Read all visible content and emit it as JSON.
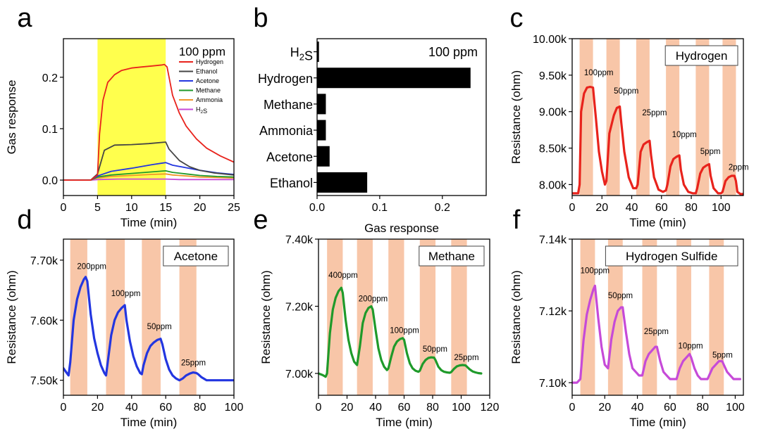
{
  "colors": {
    "hydrogen": "#e8231c",
    "ethanol": "#454545",
    "acetone": "#2336e0",
    "methane": "#1f9a2a",
    "ammonia": "#f0962a",
    "h2s": "#c64ad8",
    "exposure_highlight": "#ffff4d",
    "exposure_band": "#f8c6a8",
    "bar": "#000000"
  },
  "chart_data": [
    {
      "panel_label": "a",
      "type": "line",
      "annotation": "100 ppm",
      "xlabel": "Time (min)",
      "ylabel": "Gas response",
      "xlim": [
        0,
        25
      ],
      "ylim": [
        -0.03,
        0.275
      ],
      "xticks": [
        0,
        5,
        10,
        15,
        20,
        25
      ],
      "yticks": [
        0.0,
        0.1,
        0.2
      ],
      "ytick_labels": [
        "0.0",
        "0.1",
        "0.2"
      ],
      "highlight": [
        5,
        15
      ],
      "legend_position": "top-right",
      "legend": [
        "Hydrogen",
        "Ethanol",
        "Acetone",
        "Methane",
        "Ammonia",
        "H2S"
      ],
      "series": [
        {
          "name": "Hydrogen",
          "color_key": "hydrogen",
          "x": [
            0,
            4,
            5,
            5.3,
            5.8,
            6.5,
            7.5,
            8.5,
            10,
            11.5,
            13,
            14.5,
            14.8,
            15.2,
            16,
            17,
            18,
            19.5,
            21,
            23,
            25
          ],
          "y": [
            0,
            0,
            0.01,
            0.09,
            0.155,
            0.19,
            0.205,
            0.213,
            0.218,
            0.22,
            0.222,
            0.224,
            0.225,
            0.22,
            0.165,
            0.13,
            0.105,
            0.08,
            0.062,
            0.047,
            0.035
          ]
        },
        {
          "name": "Ethanol",
          "color_key": "ethanol",
          "x": [
            0,
            4,
            5,
            6,
            7.5,
            10,
            12.5,
            15,
            15.5,
            17,
            18.5,
            20,
            22,
            25
          ],
          "y": [
            0,
            0,
            0.012,
            0.058,
            0.068,
            0.069,
            0.071,
            0.074,
            0.06,
            0.038,
            0.026,
            0.019,
            0.014,
            0.01
          ]
        },
        {
          "name": "Acetone",
          "color_key": "acetone",
          "x": [
            0,
            4,
            5,
            7,
            10,
            13,
            15,
            16,
            18,
            20,
            22.5,
            25
          ],
          "y": [
            0,
            0,
            0.008,
            0.017,
            0.023,
            0.03,
            0.034,
            0.029,
            0.024,
            0.019,
            0.014,
            0.011
          ]
        },
        {
          "name": "Methane",
          "color_key": "methane",
          "x": [
            0,
            4,
            5,
            7,
            10,
            13,
            15,
            16,
            18,
            20,
            22.5,
            25
          ],
          "y": [
            0,
            0,
            0.006,
            0.01,
            0.013,
            0.016,
            0.018,
            0.015,
            0.012,
            0.009,
            0.007,
            0.006
          ]
        },
        {
          "name": "Ammonia",
          "color_key": "ammonia",
          "x": [
            0,
            4,
            5,
            7,
            10,
            13,
            15,
            16,
            18,
            20,
            22.5,
            25
          ],
          "y": [
            0,
            0,
            0.004,
            0.007,
            0.009,
            0.011,
            0.012,
            0.01,
            0.008,
            0.006,
            0.005,
            0.004
          ]
        },
        {
          "name": "H2S",
          "color_key": "h2s",
          "x": [
            0,
            4,
            5,
            8,
            12,
            15,
            17,
            20,
            25
          ],
          "y": [
            0,
            0,
            0.001,
            0.002,
            0.002,
            0.002,
            0.001,
            0.001,
            0.001
          ]
        }
      ]
    },
    {
      "panel_label": "b",
      "type": "bar",
      "orientation": "horizontal",
      "annotation": "100 ppm",
      "xlabel": "Gas response",
      "xlim": [
        0,
        0.27
      ],
      "xticks": [
        0.0,
        0.1,
        0.2
      ],
      "xtick_labels": [
        "0.0",
        "0.1",
        "0.2"
      ],
      "categories": [
        "H2S",
        "Hydrogen",
        "Methane",
        "Ammonia",
        "Acetone",
        "Ethanol"
      ],
      "values": [
        0.003,
        0.245,
        0.014,
        0.014,
        0.02,
        0.08
      ]
    },
    {
      "panel_label": "c",
      "type": "line",
      "legend": [
        "Hydrogen"
      ],
      "xlabel": "Time (min)",
      "ylabel": "Resistance (ohm)",
      "xlim": [
        0,
        115
      ],
      "ylim": [
        7.85,
        10.0
      ],
      "xticks": [
        0,
        20,
        40,
        60,
        80,
        100
      ],
      "yticks": [
        8.0,
        8.5,
        9.0,
        9.5,
        10.0
      ],
      "ytick_labels": [
        "8.00k",
        "8.50k",
        "9.00k",
        "9.50k",
        "10.00k"
      ],
      "exposure_bands": [
        [
          5,
          14
        ],
        [
          23,
          32
        ],
        [
          43,
          52
        ],
        [
          63,
          72
        ],
        [
          83,
          92
        ],
        [
          101,
          110
        ]
      ],
      "labels": [
        {
          "text": "100ppm",
          "x": 8,
          "y": 9.5
        },
        {
          "text": "50ppm",
          "x": 28,
          "y": 9.25
        },
        {
          "text": "25ppm",
          "x": 47,
          "y": 8.95
        },
        {
          "text": "10ppm",
          "x": 67,
          "y": 8.65
        },
        {
          "text": "5ppm",
          "x": 86,
          "y": 8.42
        },
        {
          "text": "2ppm",
          "x": 105,
          "y": 8.2
        }
      ],
      "series": [
        {
          "name": "Hydrogen",
          "color_key": "hydrogen",
          "x": [
            0,
            4,
            5,
            6,
            8,
            10,
            12,
            14,
            16,
            18,
            20,
            22,
            23,
            25,
            28,
            30,
            32,
            33,
            35,
            38,
            41,
            43,
            44,
            46,
            48,
            50,
            52,
            53,
            55,
            58,
            61,
            63,
            64,
            66,
            68,
            70,
            72,
            73,
            75,
            78,
            81,
            83,
            84,
            86,
            88,
            90,
            92,
            93,
            95,
            98,
            100,
            101,
            103,
            105,
            107,
            109,
            110,
            111,
            113,
            115
          ],
          "y": [
            7.88,
            7.88,
            8.0,
            9.0,
            9.25,
            9.33,
            9.34,
            9.33,
            8.9,
            8.45,
            8.18,
            8.0,
            8.05,
            8.7,
            8.95,
            9.05,
            9.07,
            8.85,
            8.45,
            8.1,
            7.95,
            7.95,
            8.0,
            8.45,
            8.55,
            8.58,
            8.6,
            8.4,
            8.1,
            7.93,
            7.9,
            7.92,
            8.0,
            8.25,
            8.35,
            8.38,
            8.4,
            8.2,
            8.0,
            7.9,
            7.88,
            7.88,
            7.95,
            8.15,
            8.23,
            8.26,
            8.28,
            8.12,
            7.95,
            7.88,
            7.88,
            7.9,
            8.05,
            8.1,
            8.12,
            8.12,
            8.05,
            7.9,
            7.87,
            7.87
          ]
        }
      ]
    },
    {
      "panel_label": "d",
      "type": "line",
      "legend": [
        "Acetone"
      ],
      "xlabel": "Time (min)",
      "ylabel": "Resistance (ohm)",
      "xlim": [
        0,
        100
      ],
      "ylim": [
        7.475,
        7.735
      ],
      "xticks": [
        0,
        20,
        40,
        60,
        80,
        100
      ],
      "yticks": [
        7.5,
        7.6,
        7.7
      ],
      "ytick_labels": [
        "7.50k",
        "7.60k",
        "7.70k"
      ],
      "exposure_bands": [
        [
          4,
          14
        ],
        [
          25,
          36
        ],
        [
          46,
          57
        ],
        [
          68,
          78
        ]
      ],
      "labels": [
        {
          "text": "200ppm",
          "x": 8,
          "y": 7.685
        },
        {
          "text": "100ppm",
          "x": 28,
          "y": 7.64
        },
        {
          "text": "50ppm",
          "x": 49,
          "y": 7.585
        },
        {
          "text": "25ppm",
          "x": 69,
          "y": 7.525
        }
      ],
      "series": [
        {
          "name": "Acetone",
          "color_key": "acetone",
          "x": [
            0,
            2,
            3,
            4,
            6,
            8,
            10,
            12,
            13,
            14,
            16,
            18,
            20,
            22,
            24,
            25,
            26,
            28,
            30,
            32,
            34,
            36,
            37,
            39,
            41,
            43,
            45,
            46,
            47,
            49,
            51,
            53,
            55,
            57,
            58,
            60,
            62,
            64,
            66,
            68,
            70,
            72,
            74,
            76,
            78,
            79,
            81,
            84,
            88,
            92,
            96,
            100
          ],
          "y": [
            7.52,
            7.512,
            7.508,
            7.53,
            7.6,
            7.635,
            7.655,
            7.668,
            7.672,
            7.665,
            7.61,
            7.57,
            7.545,
            7.525,
            7.512,
            7.508,
            7.53,
            7.575,
            7.6,
            7.613,
            7.62,
            7.625,
            7.6,
            7.565,
            7.54,
            7.523,
            7.512,
            7.51,
            7.525,
            7.545,
            7.557,
            7.563,
            7.567,
            7.569,
            7.56,
            7.535,
            7.518,
            7.508,
            7.503,
            7.5,
            7.503,
            7.508,
            7.511,
            7.513,
            7.512,
            7.51,
            7.505,
            7.5,
            7.5,
            7.5,
            7.5,
            7.5
          ]
        }
      ]
    },
    {
      "panel_label": "e",
      "type": "line",
      "legend": [
        "Methane"
      ],
      "xlabel": "Time (min)",
      "ylabel": "Resistance (ohm)",
      "xlim": [
        0,
        120
      ],
      "ylim": [
        6.935,
        7.4
      ],
      "xticks": [
        0,
        20,
        40,
        60,
        80,
        100,
        120
      ],
      "yticks": [
        7.0,
        7.2,
        7.4
      ],
      "ytick_labels": [
        "7.00k",
        "7.20k",
        "7.40k"
      ],
      "exposure_bands": [
        [
          6,
          17
        ],
        [
          27,
          38
        ],
        [
          49,
          60
        ],
        [
          71,
          82
        ],
        [
          93,
          104
        ]
      ],
      "labels": [
        {
          "text": "400ppm",
          "x": 7,
          "y": 7.285
        },
        {
          "text": "200ppm",
          "x": 28,
          "y": 7.215
        },
        {
          "text": "100ppm",
          "x": 50,
          "y": 7.12
        },
        {
          "text": "50ppm",
          "x": 73,
          "y": 7.065
        },
        {
          "text": "25ppm",
          "x": 95,
          "y": 7.04
        }
      ],
      "series": [
        {
          "name": "Methane",
          "color_key": "methane",
          "x": [
            0,
            3,
            5,
            6,
            8,
            10,
            12,
            14,
            16,
            17,
            19,
            21,
            23,
            25,
            27,
            29,
            31,
            33,
            35,
            37,
            38,
            40,
            42,
            44,
            46,
            48,
            49,
            51,
            53,
            55,
            57,
            59,
            60,
            62,
            64,
            66,
            68,
            70,
            71,
            73,
            75,
            77,
            79,
            81,
            82,
            84,
            86,
            88,
            90,
            92,
            93,
            95,
            97,
            99,
            101,
            103,
            104,
            106,
            108,
            110,
            112,
            114
          ],
          "y": [
            7.0,
            6.995,
            6.99,
            7.0,
            7.12,
            7.19,
            7.225,
            7.245,
            7.255,
            7.24,
            7.16,
            7.1,
            7.06,
            7.035,
            7.025,
            7.08,
            7.15,
            7.18,
            7.195,
            7.2,
            7.19,
            7.13,
            7.075,
            7.04,
            7.02,
            7.01,
            7.015,
            7.05,
            7.08,
            7.095,
            7.102,
            7.105,
            7.1,
            7.06,
            7.03,
            7.015,
            7.008,
            7.005,
            7.008,
            7.028,
            7.04,
            7.046,
            7.048,
            7.047,
            7.04,
            7.02,
            7.01,
            7.005,
            7.003,
            7.002,
            7.004,
            7.014,
            7.021,
            7.024,
            7.025,
            7.024,
            7.02,
            7.012,
            7.006,
            7.003,
            7.001,
            7.0
          ]
        }
      ]
    },
    {
      "panel_label": "f",
      "type": "line",
      "legend": [
        "Hydrogen Sulfide"
      ],
      "xlabel": "Time (min)",
      "ylabel": "Resistance (ohm)",
      "xlim": [
        0,
        105
      ],
      "ylim": [
        7.0965,
        7.14
      ],
      "xticks": [
        0,
        20,
        40,
        60,
        80,
        100
      ],
      "yticks": [
        7.1,
        7.12,
        7.14
      ],
      "ytick_labels": [
        "7.10k",
        "7.12k",
        "7.14k"
      ],
      "exposure_bands": [
        [
          5,
          14
        ],
        [
          22,
          31
        ],
        [
          43,
          52
        ],
        [
          64,
          73
        ],
        [
          84,
          93
        ]
      ],
      "labels": [
        {
          "text": "100ppm",
          "x": 5,
          "y": 7.1305
        },
        {
          "text": "50ppm",
          "x": 22,
          "y": 7.1235
        },
        {
          "text": "25ppm",
          "x": 44,
          "y": 7.1135
        },
        {
          "text": "10ppm",
          "x": 65,
          "y": 7.1095
        },
        {
          "text": "5ppm",
          "x": 86,
          "y": 7.107
        }
      ],
      "series": [
        {
          "name": "Hydrogen Sulfide",
          "color_key": "h2s",
          "x": [
            0,
            3,
            5,
            7,
            9,
            11,
            13,
            14,
            16,
            18,
            20,
            22,
            24,
            26,
            28,
            30,
            31,
            33,
            35,
            37,
            39,
            41,
            43,
            45,
            47,
            49,
            51,
            52,
            54,
            56,
            58,
            60,
            62,
            64,
            66,
            68,
            70,
            72,
            73,
            75,
            77,
            79,
            81,
            83,
            84,
            86,
            88,
            90,
            92,
            93,
            95,
            97,
            99,
            101,
            103
          ],
          "y": [
            7.1,
            7.1,
            7.101,
            7.112,
            7.119,
            7.123,
            7.126,
            7.127,
            7.118,
            7.11,
            7.105,
            7.104,
            7.112,
            7.117,
            7.12,
            7.121,
            7.121,
            7.114,
            7.108,
            7.104,
            7.103,
            7.102,
            7.102,
            7.106,
            7.108,
            7.109,
            7.11,
            7.11,
            7.106,
            7.103,
            7.102,
            7.101,
            7.101,
            7.101,
            7.104,
            7.106,
            7.107,
            7.108,
            7.107,
            7.104,
            7.102,
            7.101,
            7.101,
            7.101,
            7.102,
            7.104,
            7.105,
            7.106,
            7.106,
            7.105,
            7.103,
            7.102,
            7.101,
            7.101,
            7.101
          ]
        }
      ]
    }
  ]
}
